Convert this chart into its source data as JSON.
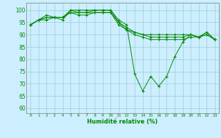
{
  "background_color": "#cceeff",
  "grid_color": "#99cccc",
  "line_color": "#008800",
  "marker": "D",
  "xlabel": "Humidité relative (%)",
  "xlabel_color": "#008800",
  "ylabel_ticks": [
    60,
    65,
    70,
    75,
    80,
    85,
    90,
    95,
    100
  ],
  "xticks": [
    0,
    1,
    2,
    3,
    4,
    5,
    6,
    7,
    8,
    9,
    10,
    11,
    12,
    13,
    14,
    15,
    16,
    17,
    18,
    19,
    20,
    21,
    22,
    23
  ],
  "ylim": [
    58,
    103
  ],
  "xlim": [
    -0.5,
    23.5
  ],
  "series": [
    [
      94,
      96,
      97,
      97,
      96,
      100,
      99,
      99,
      100,
      100,
      100,
      95,
      92,
      91,
      90,
      90,
      90,
      90,
      90,
      90,
      90,
      89,
      90,
      88
    ],
    [
      94,
      96,
      98,
      97,
      97,
      100,
      100,
      100,
      100,
      100,
      100,
      96,
      94,
      74,
      67,
      73,
      69,
      73,
      81,
      87,
      90,
      89,
      91,
      88
    ],
    [
      94,
      96,
      96,
      97,
      97,
      99,
      98,
      98,
      99,
      99,
      99,
      94,
      92,
      90,
      89,
      88,
      88,
      88,
      88,
      88,
      89,
      89,
      90,
      88
    ],
    [
      94,
      96,
      97,
      97,
      97,
      99,
      99,
      99,
      99,
      99,
      99,
      95,
      93,
      91,
      90,
      89,
      89,
      89,
      89,
      89,
      90,
      89,
      91,
      88
    ]
  ]
}
